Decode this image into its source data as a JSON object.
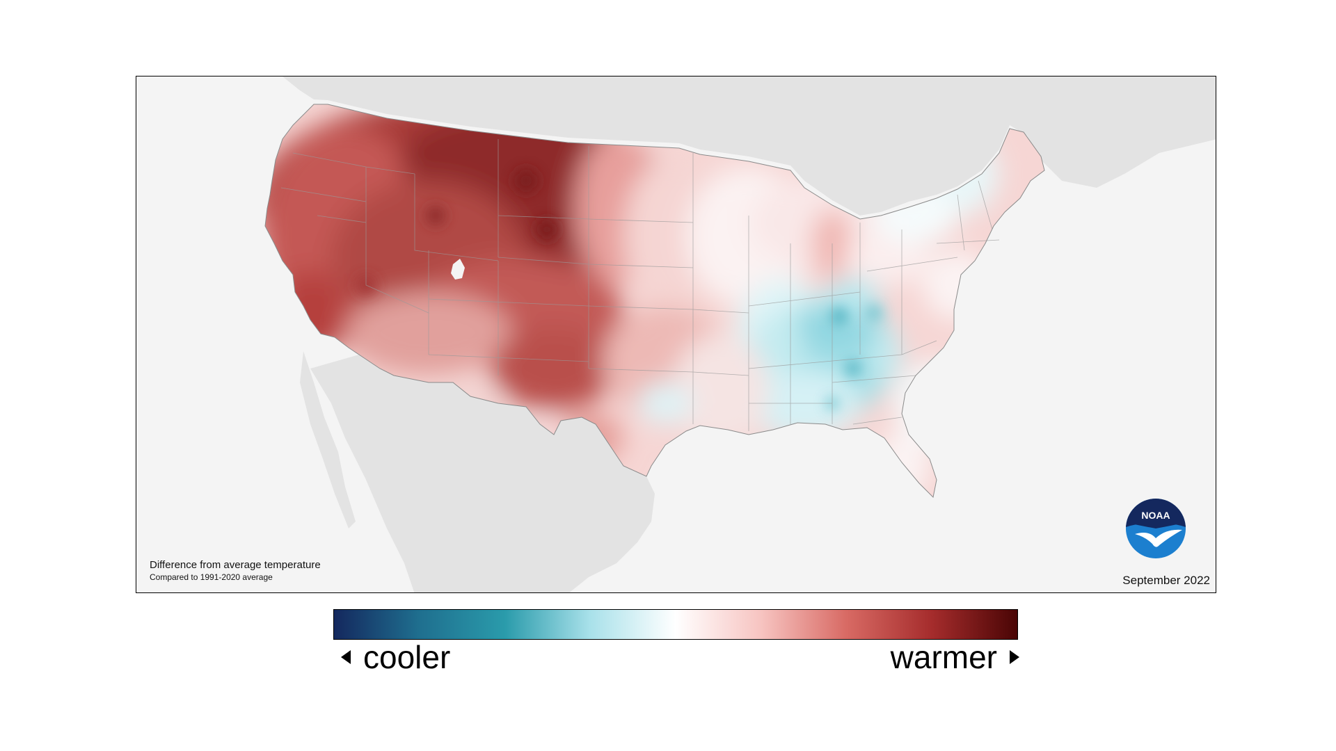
{
  "map": {
    "caption_line1": "Difference from average temperature",
    "caption_line2": "Compared to 1991-2020 average",
    "date": "September 2022",
    "logo_text": "NOAA"
  },
  "legend": {
    "cool_label": "cooler",
    "warm_label": "warmer",
    "colors": [
      "#14285e",
      "#1f6f8f",
      "#2a9bab",
      "#a9e1ea",
      "#ffffff",
      "#f7c4c1",
      "#d86a64",
      "#a52c2c",
      "#4a0505"
    ]
  },
  "anomaly_colors": {
    "warm_dark": "#8e2a2a",
    "warm": "#c65a55",
    "warm_light": "#eba8a4",
    "neutral": "#fbeeee",
    "cool_light": "#cdeff3",
    "cool": "#6cc6d2"
  }
}
